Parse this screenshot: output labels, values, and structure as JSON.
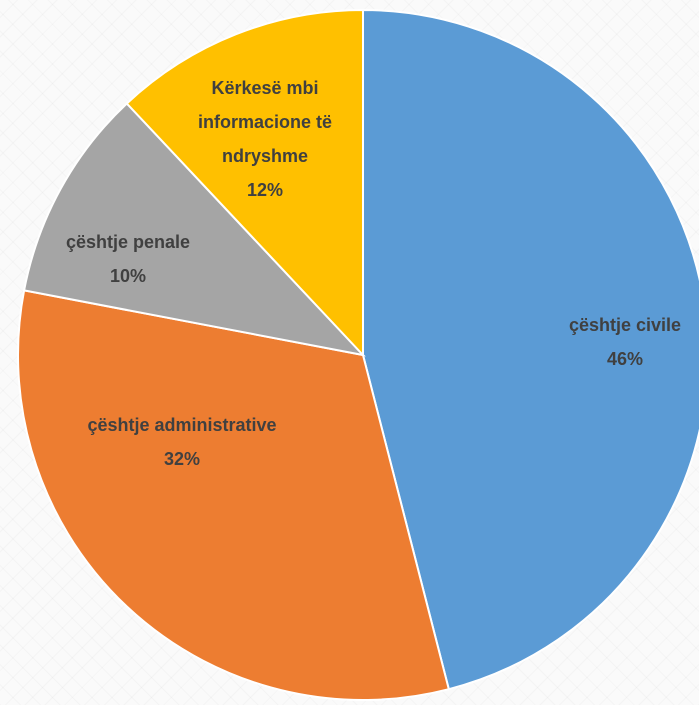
{
  "chart_data": {
    "type": "pie",
    "categories": [
      "çështje civile",
      "çështje administrative",
      "çështje penale",
      "Kërkesë mbi informacione të ndryshme"
    ],
    "values": [
      46,
      32,
      10,
      12
    ],
    "value_labels": [
      "46%",
      "32%",
      "10%",
      "12%"
    ],
    "colors": [
      "#5b9bd5",
      "#ed7d31",
      "#a5a5a5",
      "#ffc000"
    ]
  }
}
